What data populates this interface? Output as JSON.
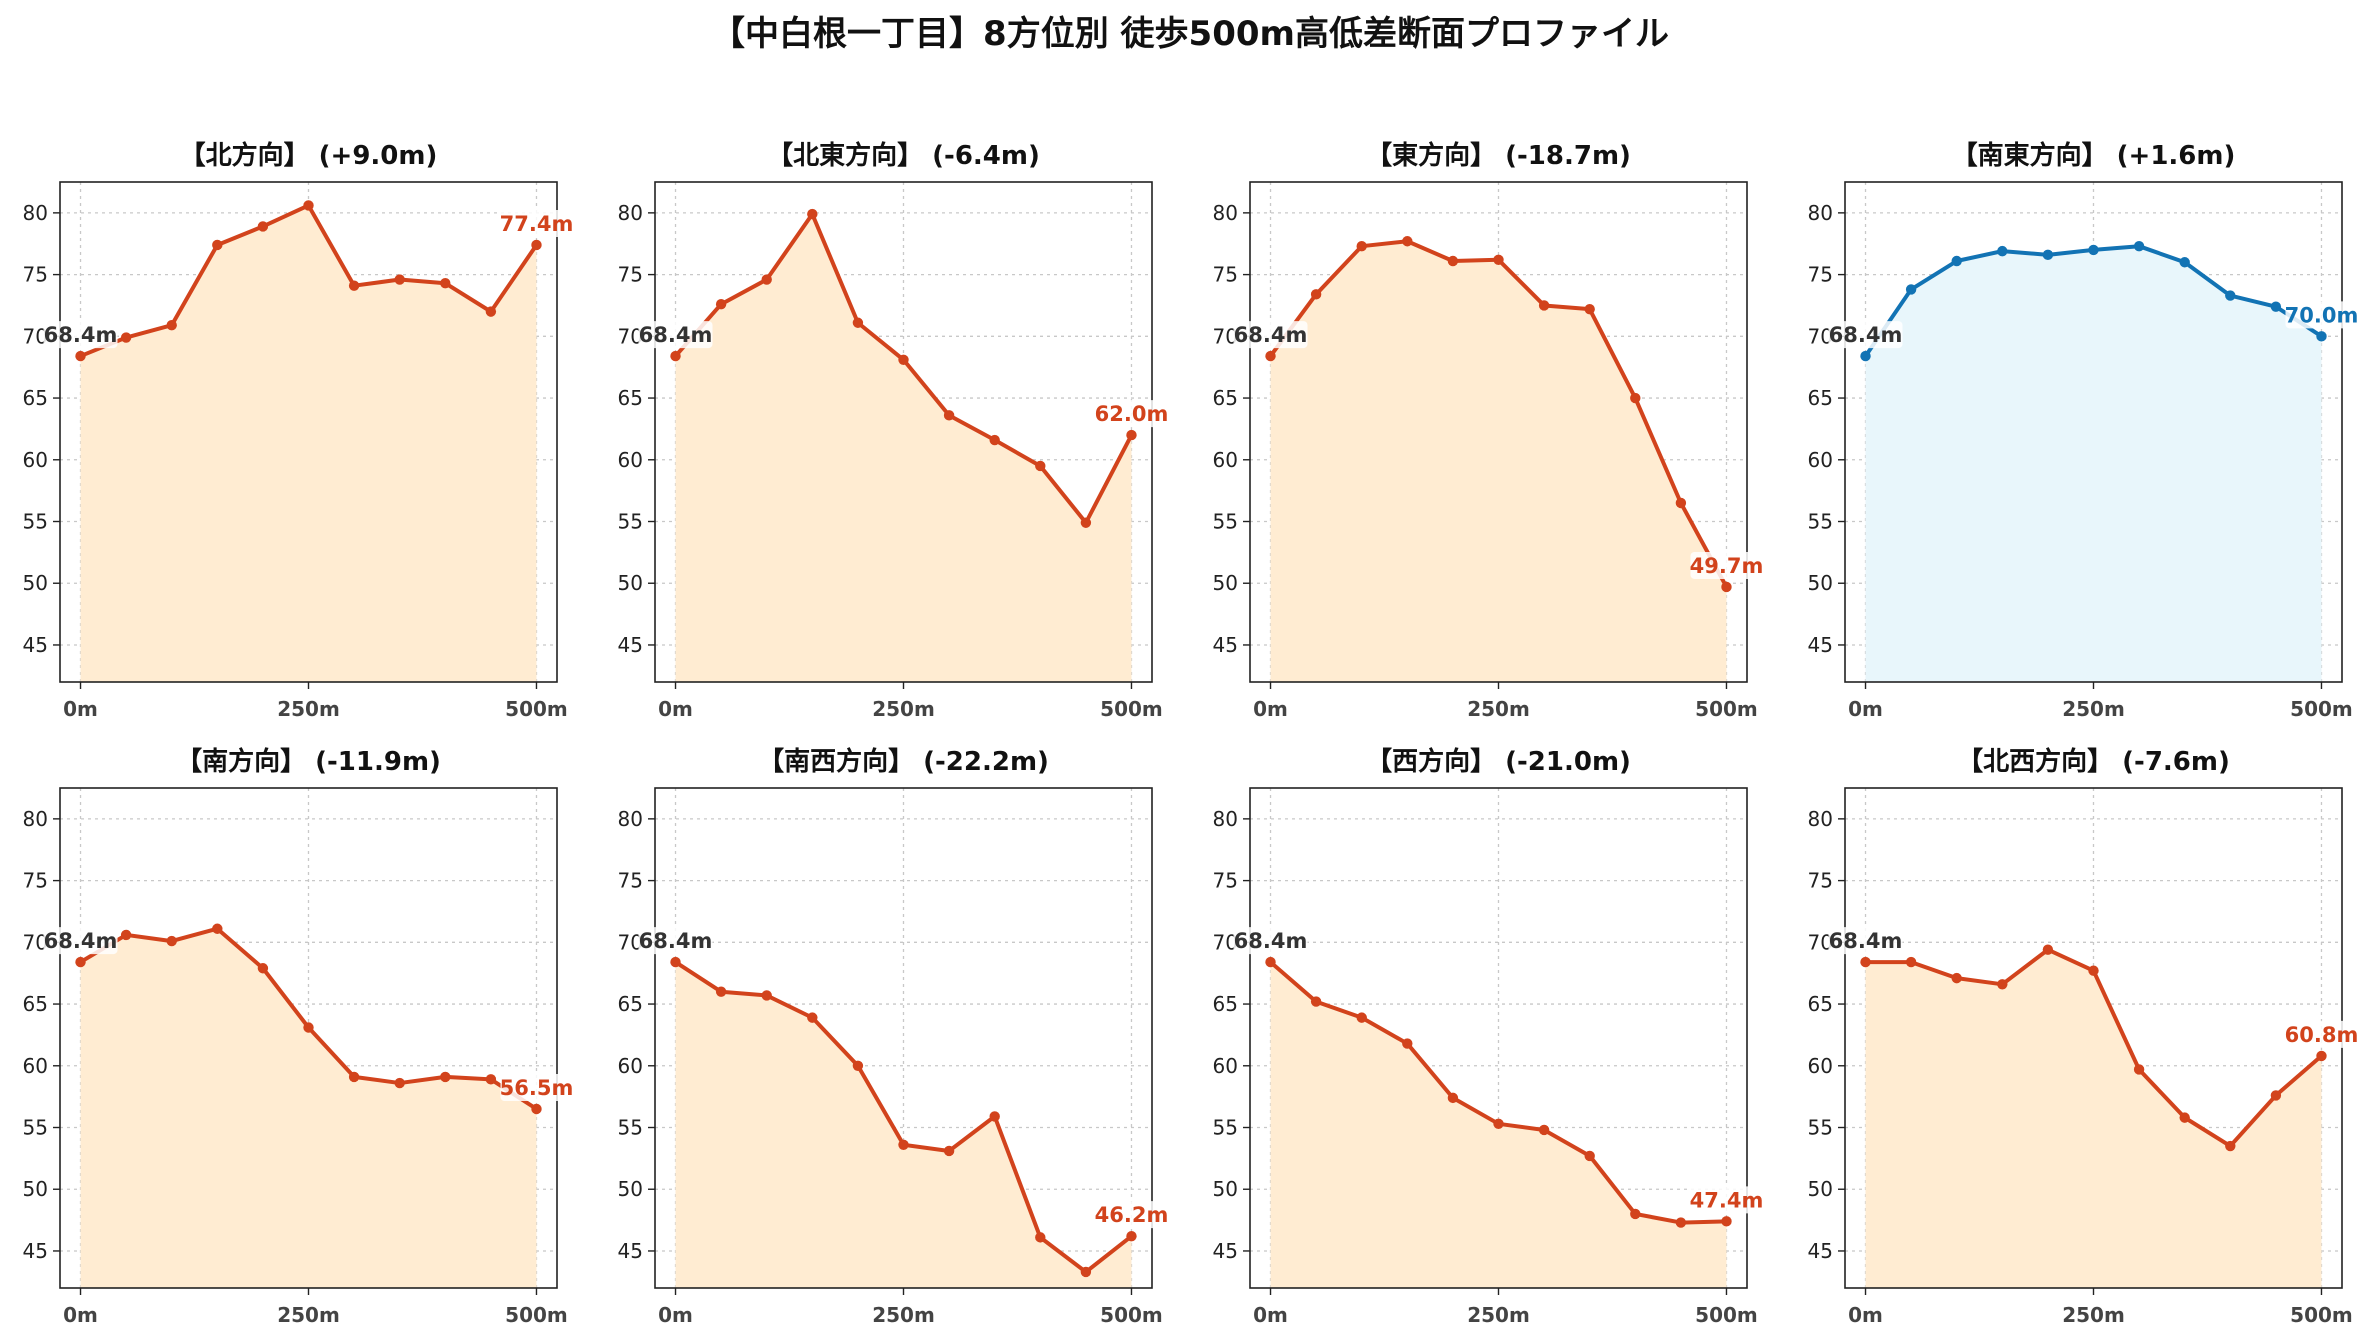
{
  "title": "【中白根一丁目】8方位別 徒歩500m高低差断面プロファイル",
  "colors": {
    "decline_line": "#d2431c",
    "decline_fill": "#ffecd2",
    "incline_line": "#1273b4",
    "incline_fill": "#e8f6fb",
    "grid": "#c8c8c8",
    "axis": "#222222"
  },
  "chart_data": [
    {
      "type": "area",
      "title": "【北方向】 (+9.0m)",
      "x": [
        0,
        50,
        100,
        150,
        200,
        250,
        300,
        350,
        400,
        450,
        500
      ],
      "xticks": [
        0,
        250,
        500
      ],
      "xtick_labels": [
        "0m",
        "250m",
        "500m"
      ],
      "series": [
        {
          "values": [
            68.4,
            69.9,
            70.9,
            77.4,
            78.9,
            80.6,
            74.1,
            74.6,
            74.3,
            72.0,
            77.4
          ]
        }
      ],
      "ylim": [
        42,
        82.5
      ],
      "yticks": [
        45,
        50,
        55,
        60,
        65,
        70,
        75,
        80
      ],
      "start_label": "68.4m",
      "end_label": "77.4m",
      "style": "decline",
      "grid": true
    },
    {
      "type": "area",
      "title": "【北東方向】 (-6.4m)",
      "x": [
        0,
        50,
        100,
        150,
        200,
        250,
        300,
        350,
        400,
        450,
        500
      ],
      "xticks": [
        0,
        250,
        500
      ],
      "xtick_labels": [
        "0m",
        "250m",
        "500m"
      ],
      "series": [
        {
          "values": [
            68.4,
            72.6,
            74.6,
            79.9,
            71.1,
            68.1,
            63.6,
            61.6,
            59.5,
            54.9,
            62.0
          ]
        }
      ],
      "ylim": [
        42,
        82.5
      ],
      "yticks": [
        45,
        50,
        55,
        60,
        65,
        70,
        75,
        80
      ],
      "start_label": "68.4m",
      "end_label": "62.0m",
      "style": "decline",
      "grid": true
    },
    {
      "type": "area",
      "title": "【東方向】 (-18.7m)",
      "x": [
        0,
        50,
        100,
        150,
        200,
        250,
        300,
        350,
        400,
        450,
        500
      ],
      "xticks": [
        0,
        250,
        500
      ],
      "xtick_labels": [
        "0m",
        "250m",
        "500m"
      ],
      "series": [
        {
          "values": [
            68.4,
            73.4,
            77.3,
            77.7,
            76.1,
            76.2,
            72.5,
            72.2,
            65.0,
            56.5,
            49.7
          ]
        }
      ],
      "ylim": [
        42,
        82.5
      ],
      "yticks": [
        45,
        50,
        55,
        60,
        65,
        70,
        75,
        80
      ],
      "start_label": "68.4m",
      "end_label": "49.7m",
      "style": "decline",
      "grid": true
    },
    {
      "type": "area",
      "title": "【南東方向】 (+1.6m)",
      "x": [
        0,
        50,
        100,
        150,
        200,
        250,
        300,
        350,
        400,
        450,
        500
      ],
      "xticks": [
        0,
        250,
        500
      ],
      "xtick_labels": [
        "0m",
        "250m",
        "500m"
      ],
      "series": [
        {
          "values": [
            68.4,
            73.8,
            76.1,
            76.9,
            76.6,
            77.0,
            77.3,
            76.0,
            73.3,
            72.4,
            70.0
          ]
        }
      ],
      "ylim": [
        42,
        82.5
      ],
      "yticks": [
        45,
        50,
        55,
        60,
        65,
        70,
        75,
        80
      ],
      "start_label": "68.4m",
      "end_label": "70.0m",
      "style": "incline",
      "grid": true
    },
    {
      "type": "area",
      "title": "【南方向】 (-11.9m)",
      "x": [
        0,
        50,
        100,
        150,
        200,
        250,
        300,
        350,
        400,
        450,
        500
      ],
      "xticks": [
        0,
        250,
        500
      ],
      "xtick_labels": [
        "0m",
        "250m",
        "500m"
      ],
      "series": [
        {
          "values": [
            68.4,
            70.6,
            70.1,
            71.1,
            67.9,
            63.1,
            59.1,
            58.6,
            59.1,
            58.9,
            56.5
          ]
        }
      ],
      "ylim": [
        42,
        82.5
      ],
      "yticks": [
        45,
        50,
        55,
        60,
        65,
        70,
        75,
        80
      ],
      "start_label": "68.4m",
      "end_label": "56.5m",
      "style": "decline",
      "grid": true
    },
    {
      "type": "area",
      "title": "【南西方向】 (-22.2m)",
      "x": [
        0,
        50,
        100,
        150,
        200,
        250,
        300,
        350,
        400,
        450,
        500
      ],
      "xticks": [
        0,
        250,
        500
      ],
      "xtick_labels": [
        "0m",
        "250m",
        "500m"
      ],
      "series": [
        {
          "values": [
            68.4,
            66.0,
            65.7,
            63.9,
            60.0,
            53.6,
            53.1,
            55.9,
            46.1,
            43.3,
            46.2
          ]
        }
      ],
      "ylim": [
        42,
        82.5
      ],
      "yticks": [
        45,
        50,
        55,
        60,
        65,
        70,
        75,
        80
      ],
      "start_label": "68.4m",
      "end_label": "46.2m",
      "style": "decline",
      "grid": true
    },
    {
      "type": "area",
      "title": "【西方向】 (-21.0m)",
      "x": [
        0,
        50,
        100,
        150,
        200,
        250,
        300,
        350,
        400,
        450,
        500
      ],
      "xticks": [
        0,
        250,
        500
      ],
      "xtick_labels": [
        "0m",
        "250m",
        "500m"
      ],
      "series": [
        {
          "values": [
            68.4,
            65.2,
            63.9,
            61.8,
            57.4,
            55.3,
            54.8,
            52.7,
            48.0,
            47.3,
            47.4
          ]
        }
      ],
      "ylim": [
        42,
        82.5
      ],
      "yticks": [
        45,
        50,
        55,
        60,
        65,
        70,
        75,
        80
      ],
      "start_label": "68.4m",
      "end_label": "47.4m",
      "style": "decline",
      "grid": true
    },
    {
      "type": "area",
      "title": "【北西方向】 (-7.6m)",
      "x": [
        0,
        50,
        100,
        150,
        200,
        250,
        300,
        350,
        400,
        450,
        500
      ],
      "xticks": [
        0,
        250,
        500
      ],
      "xtick_labels": [
        "0m",
        "250m",
        "500m"
      ],
      "series": [
        {
          "values": [
            68.4,
            68.4,
            67.1,
            66.6,
            69.4,
            67.7,
            59.7,
            55.8,
            53.5,
            57.6,
            60.8
          ]
        }
      ],
      "ylim": [
        42,
        82.5
      ],
      "yticks": [
        45,
        50,
        55,
        60,
        65,
        70,
        75,
        80
      ],
      "start_label": "68.4m",
      "end_label": "60.8m",
      "style": "decline",
      "grid": true
    }
  ]
}
